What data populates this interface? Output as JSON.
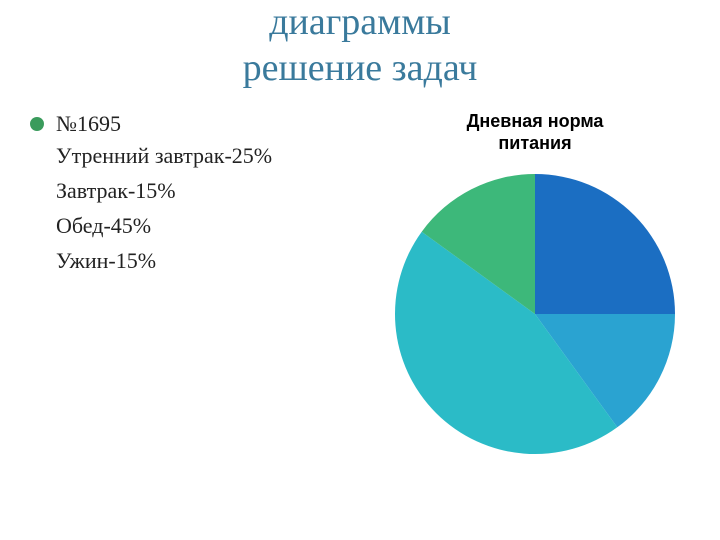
{
  "title": {
    "line1": "диаграммы",
    "line2": "решение задач",
    "color": "#3a7a9c",
    "fontsize": 38
  },
  "bullet": {
    "label": "№1695",
    "color": "#3a9b5c"
  },
  "items": [
    "Утренний завтрак-25%",
    "Завтрак-15%",
    "Обед-45%",
    "Ужин-15%"
  ],
  "chart": {
    "type": "pie",
    "title_line1": "Дневная норма",
    "title_line2": "питания",
    "title_fontsize": 18,
    "title_color": "#000000",
    "radius": 140,
    "slices": [
      {
        "label": "Утренний завтрак",
        "value": 25,
        "color": "#1b6ec2"
      },
      {
        "label": "Завтрак",
        "value": 15,
        "color": "#2aa3d1"
      },
      {
        "label": "Обед",
        "value": 45,
        "color": "#2bbbc7"
      },
      {
        "label": "Ужин",
        "value": 15,
        "color": "#3db87a"
      }
    ],
    "start_angle_deg": -90,
    "background_color": "#ffffff"
  },
  "text_color": "#222222",
  "body_fontsize": 22
}
